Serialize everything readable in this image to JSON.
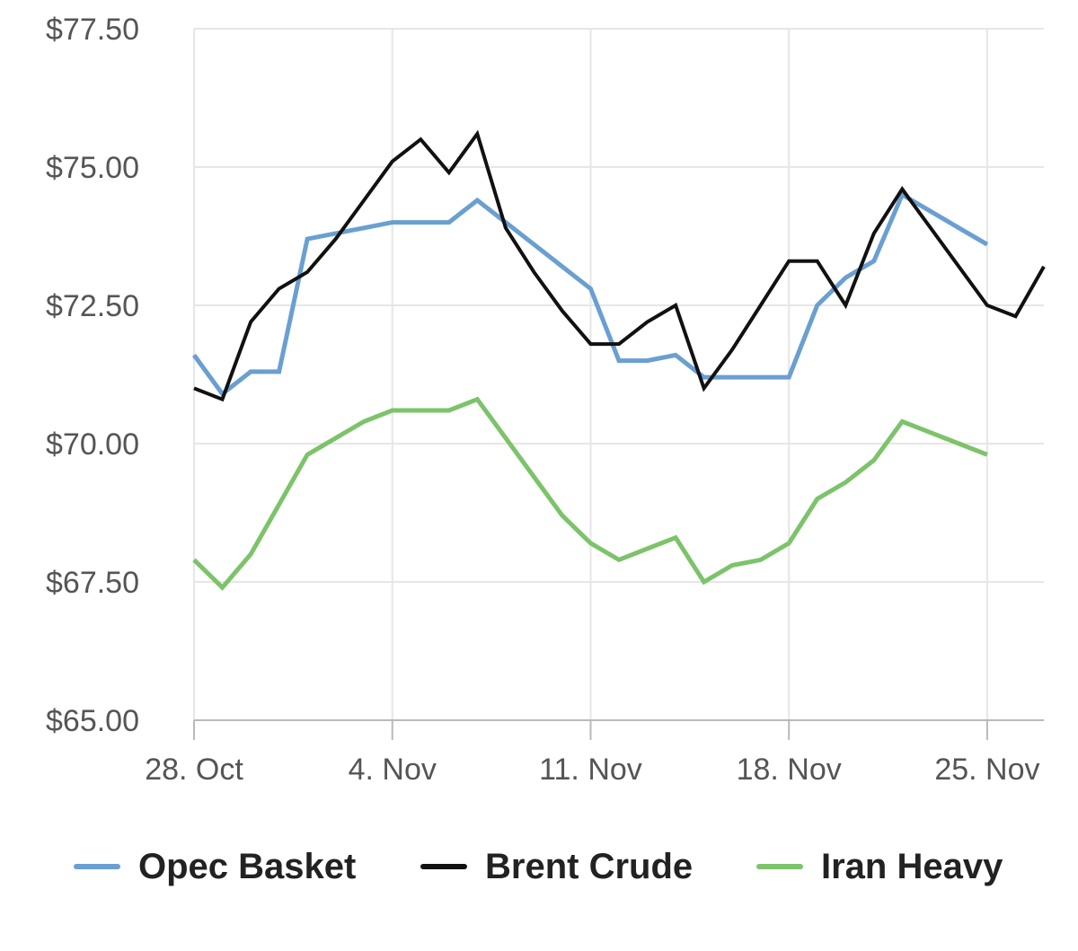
{
  "chart_data": {
    "type": "line",
    "x": [
      "28. Oct",
      "29. Oct",
      "30. Oct",
      "31. Oct",
      "1. Nov",
      "2. Nov",
      "3. Nov",
      "4. Nov",
      "5. Nov",
      "6. Nov",
      "7. Nov",
      "8. Nov",
      "9. Nov",
      "10. Nov",
      "11. Nov",
      "12. Nov",
      "13. Nov",
      "14. Nov",
      "15. Nov",
      "16. Nov",
      "17. Nov",
      "18. Nov",
      "19. Nov",
      "20. Nov",
      "21. Nov",
      "22. Nov",
      "23. Nov",
      "24. Nov",
      "25. Nov",
      "26. Nov",
      "27. Nov"
    ],
    "x_tick_labels": [
      "28. Oct",
      "4. Nov",
      "11. Nov",
      "18. Nov",
      "25. Nov"
    ],
    "y_tick_labels": [
      "$77.50",
      "$75.00",
      "$72.50",
      "$70.00",
      "$67.50",
      "$65.00"
    ],
    "ylim": [
      65,
      77.5
    ],
    "grid": true,
    "legend_position": "bottom",
    "series": [
      {
        "name": "Opec Basket",
        "color": "#6a9fd1",
        "values": [
          71.6,
          70.9,
          71.3,
          71.3,
          73.7,
          73.8,
          73.9,
          74.0,
          74.0,
          74.0,
          74.4,
          74.0,
          73.6,
          73.2,
          72.8,
          71.5,
          71.5,
          71.6,
          71.2,
          71.2,
          71.2,
          71.2,
          72.5,
          73.0,
          73.3,
          74.5,
          74.2,
          73.9,
          73.6,
          null,
          null
        ]
      },
      {
        "name": "Brent Crude",
        "color": "#111111",
        "values": [
          71.0,
          70.8,
          72.2,
          72.8,
          73.1,
          73.7,
          74.4,
          75.1,
          75.5,
          74.9,
          75.6,
          73.9,
          73.1,
          72.4,
          71.8,
          71.8,
          72.2,
          72.5,
          71.0,
          71.7,
          72.5,
          73.3,
          73.3,
          72.5,
          73.8,
          74.6,
          73.9,
          73.2,
          72.5,
          72.3,
          73.2
        ]
      },
      {
        "name": "Iran Heavy",
        "color": "#7cc36a",
        "values": [
          67.9,
          67.4,
          68.0,
          68.9,
          69.8,
          70.1,
          70.4,
          70.6,
          70.6,
          70.6,
          70.8,
          70.1,
          69.4,
          68.7,
          68.2,
          67.9,
          68.1,
          68.3,
          67.5,
          67.8,
          67.9,
          68.2,
          69.0,
          69.3,
          69.7,
          70.4,
          70.2,
          70.0,
          69.8,
          null,
          null
        ]
      }
    ]
  }
}
